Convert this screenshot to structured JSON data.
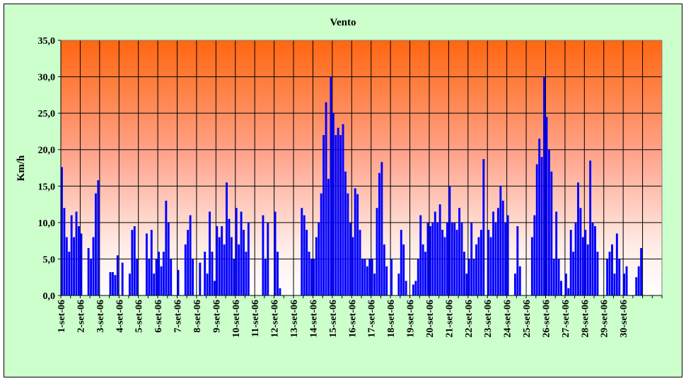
{
  "chart_data": {
    "type": "bar",
    "title": "Vento",
    "xlabel": "",
    "ylabel": "Km/h",
    "ylim": [
      0,
      35
    ],
    "yticks": [
      "0,0",
      "5,0",
      "10,0",
      "15,0",
      "20,0",
      "25,0",
      "30,0",
      "35,0"
    ],
    "ytick_values": [
      0,
      5,
      10,
      15,
      20,
      25,
      30,
      35
    ],
    "grid": true,
    "legend": "none",
    "colors": {
      "bars": "#0000ff",
      "plot_top": "#ff6611",
      "plot_bottom": "#ffffff",
      "background": "#ccffcc",
      "grid": "#000000"
    },
    "categories": [
      "1-set-06",
      "2-set-06",
      "3-set-06",
      "4-set-06",
      "5-set-06",
      "6-set-06",
      "7-set-06",
      "8-set-06",
      "9-set-06",
      "10-set-06",
      "11-set-06",
      "12-set-06",
      "13-set-06",
      "14-set-06",
      "15-set-06",
      "16-set-06",
      "17-set-06",
      "18-set-06",
      "19-set-06",
      "20-set-06",
      "21-set-06",
      "22-set-06",
      "23-set-06",
      "24-set-06",
      "25-set-06",
      "26-set-06",
      "27-set-06",
      "28-set-06",
      "29-set-06",
      "30-set-06"
    ],
    "samples_per_day": 8,
    "values_by_day": [
      [
        17.6,
        12,
        8,
        6,
        11,
        8,
        11.5,
        9.5
      ],
      [
        8.5,
        0,
        0,
        6.5,
        5,
        8,
        14,
        15.8
      ],
      [
        0,
        0,
        0,
        0,
        3.2,
        3.2,
        2.8,
        5.5
      ],
      [
        0,
        4.5,
        0,
        0,
        3,
        9,
        9.5,
        5
      ],
      [
        0,
        0,
        0,
        8.5,
        5,
        9,
        3,
        5
      ],
      [
        6,
        4,
        6,
        13,
        10,
        5,
        0,
        0
      ],
      [
        3.5,
        0,
        0,
        7,
        9,
        11,
        5,
        0
      ],
      [
        0,
        4.5,
        0,
        6,
        3,
        11.5,
        6,
        2
      ],
      [
        9.5,
        8,
        9.5,
        7,
        15.5,
        10.5,
        8,
        5
      ],
      [
        12,
        7,
        11.5,
        9,
        6,
        10,
        0,
        0
      ],
      [
        0,
        0,
        0,
        11,
        5,
        10,
        0,
        0
      ],
      [
        11.5,
        6,
        1,
        0,
        0,
        0,
        0,
        0
      ],
      [
        0,
        0,
        0,
        12,
        11,
        9,
        6,
        5
      ],
      [
        5,
        8,
        10,
        14,
        22,
        26.5,
        16,
        30
      ],
      [
        25,
        22,
        23,
        22,
        23.5,
        17,
        14,
        10
      ],
      [
        8,
        14.7,
        13.9,
        9,
        5,
        5,
        4,
        5
      ],
      [
        5,
        3,
        12,
        16.8,
        18.3,
        7,
        4,
        0
      ],
      [
        5,
        0,
        0,
        3,
        9,
        7,
        2,
        0
      ],
      [
        0,
        1.5,
        2,
        5,
        11,
        7,
        6,
        10
      ],
      [
        9.5,
        10,
        11.5,
        10,
        12.5,
        9,
        8,
        10
      ],
      [
        15,
        10,
        10,
        9,
        12,
        10,
        6,
        3
      ],
      [
        5,
        10,
        5,
        7,
        8,
        9,
        18.7,
        0
      ],
      [
        9,
        8,
        11.5,
        10,
        12,
        15,
        13,
        10
      ],
      [
        11,
        0,
        0,
        3,
        9.5,
        4,
        0,
        0
      ],
      [
        0,
        0,
        8,
        11,
        18,
        21.5,
        19,
        30
      ],
      [
        24.5,
        20,
        17,
        5,
        11.5,
        5,
        2,
        0
      ],
      [
        3,
        1,
        9,
        6,
        10,
        15.5,
        12,
        8
      ],
      [
        9,
        7,
        18.5,
        10,
        9.5,
        6,
        0,
        0
      ],
      [
        0,
        5,
        6,
        7,
        3,
        8.5,
        5,
        0
      ],
      [
        3,
        4,
        0,
        0,
        0,
        2.5,
        4,
        6.5
      ]
    ]
  }
}
